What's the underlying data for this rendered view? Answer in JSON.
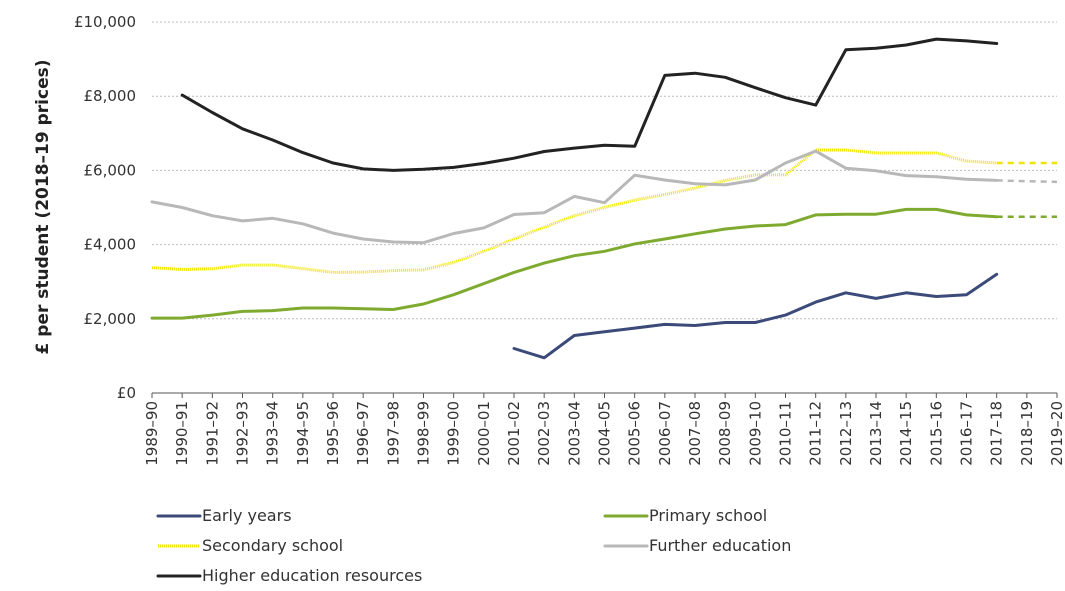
{
  "chart_data": {
    "type": "line",
    "xlabel": "",
    "ylabel": "£ per student (2018–19 prices)",
    "ylim": [
      0,
      10000
    ],
    "yticks": [
      0,
      2000,
      4000,
      6000,
      8000,
      10000
    ],
    "ytick_labels": [
      "£0",
      "£2,000",
      "£4,000",
      "£6,000",
      "£8,000",
      "£10,000"
    ],
    "grid": true,
    "legend_position": "bottom",
    "categories": [
      "1989–90",
      "1990–91",
      "1991–92",
      "1992–93",
      "1993–94",
      "1994–95",
      "1995–96",
      "1996–97",
      "1997–98",
      "1998–99",
      "1999–00",
      "2000–01",
      "2001–02",
      "2002–03",
      "2003–04",
      "2004–05",
      "2005–06",
      "2006–07",
      "2007–08",
      "2008–09",
      "2009–10",
      "2010–11",
      "2011–12",
      "2012–13",
      "2013–14",
      "2014–15",
      "2015–16",
      "2016–17",
      "2017–18",
      "2018–19",
      "2019–20"
    ],
    "series": [
      {
        "name": "Early years",
        "color": "#3b4a78",
        "style": "solid",
        "values": [
          null,
          null,
          null,
          null,
          null,
          null,
          null,
          null,
          null,
          null,
          null,
          null,
          1200,
          950,
          1550,
          1650,
          1750,
          1850,
          1820,
          1900,
          1900,
          2100,
          2450,
          2700,
          2550,
          2700,
          2600,
          2650,
          3200,
          null,
          null
        ],
        "projection": []
      },
      {
        "name": "Primary school",
        "color": "#7daa2f",
        "style": "solid",
        "values": [
          2020,
          2020,
          2100,
          2200,
          2220,
          2290,
          2290,
          2270,
          2250,
          2400,
          2650,
          2950,
          3250,
          3500,
          3700,
          3820,
          4020,
          4150,
          4290,
          4420,
          4500,
          4540,
          4800,
          4820,
          4820,
          4950,
          4950,
          4800,
          4750,
          null,
          null
        ],
        "projection": [
          4750,
          4750,
          4750
        ]
      },
      {
        "name": "Secondary school",
        "color": "#f0e400",
        "style": "dotted",
        "values": [
          3380,
          3330,
          3350,
          3450,
          3450,
          3350,
          3250,
          3260,
          3300,
          3320,
          3520,
          3820,
          4150,
          4470,
          4780,
          5000,
          5200,
          5350,
          5520,
          5730,
          5880,
          5880,
          6550,
          6550,
          6470,
          6470,
          6470,
          6250,
          6200,
          null,
          null
        ],
        "projection": [
          6200,
          6200,
          6200
        ]
      },
      {
        "name": "Further education",
        "color": "#b8b8b8",
        "style": "solid",
        "values": [
          5150,
          5000,
          4780,
          4640,
          4710,
          4560,
          4310,
          4150,
          4070,
          4050,
          4300,
          4450,
          4810,
          4860,
          5300,
          5130,
          5870,
          5740,
          5640,
          5610,
          5740,
          6200,
          6520,
          6060,
          5990,
          5860,
          5830,
          5760,
          5730,
          null,
          null
        ],
        "projection": [
          5730,
          5710,
          5690
        ]
      },
      {
        "name": "Higher education resources",
        "color": "#222222",
        "style": "solid",
        "values": [
          null,
          8030,
          7560,
          7120,
          6820,
          6480,
          6200,
          6040,
          6000,
          6030,
          6080,
          6190,
          6330,
          6510,
          6600,
          6680,
          6650,
          8560,
          8620,
          8510,
          8230,
          7960,
          7760,
          9250,
          9290,
          9380,
          9540,
          9490,
          9420,
          null,
          null
        ],
        "projection": []
      }
    ]
  }
}
